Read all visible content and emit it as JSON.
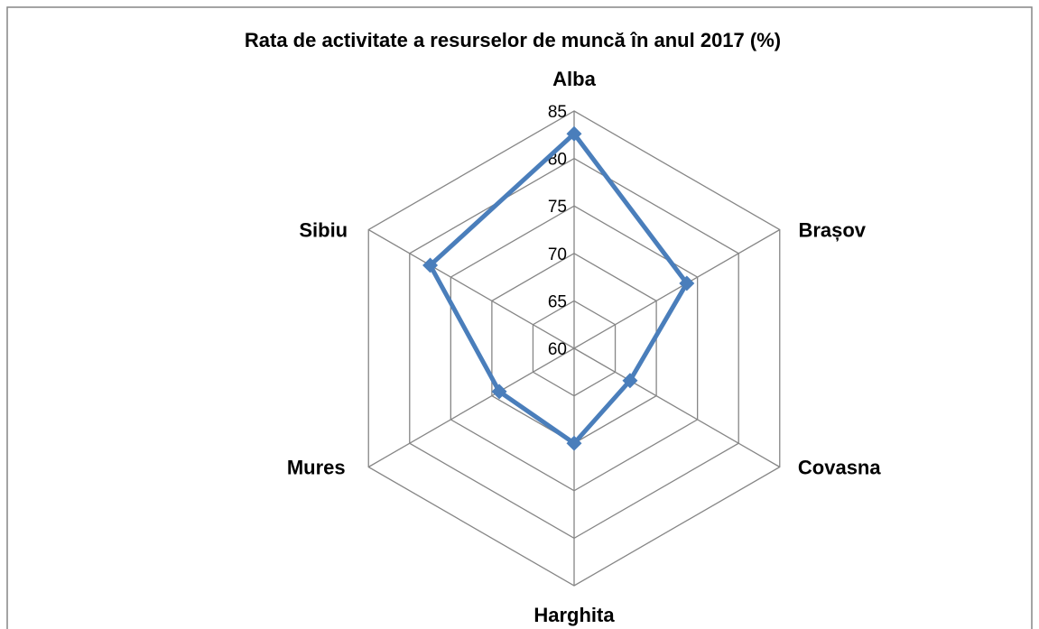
{
  "chart_data": {
    "type": "radar",
    "title": "Rata de activitate a resurselor de muncă în anul 2017 (%)",
    "categories": [
      "Alba",
      "Brașov",
      "Covasna",
      "Harghita",
      "Mures",
      "Sibiu"
    ],
    "values": [
      82.6,
      73.7,
      66.8,
      70,
      69.1,
      77.5
    ],
    "color": "#4a7ebb",
    "ylim": [
      60,
      85
    ],
    "yticks": [
      60,
      65,
      70,
      75,
      80,
      85
    ],
    "grid": true
  }
}
